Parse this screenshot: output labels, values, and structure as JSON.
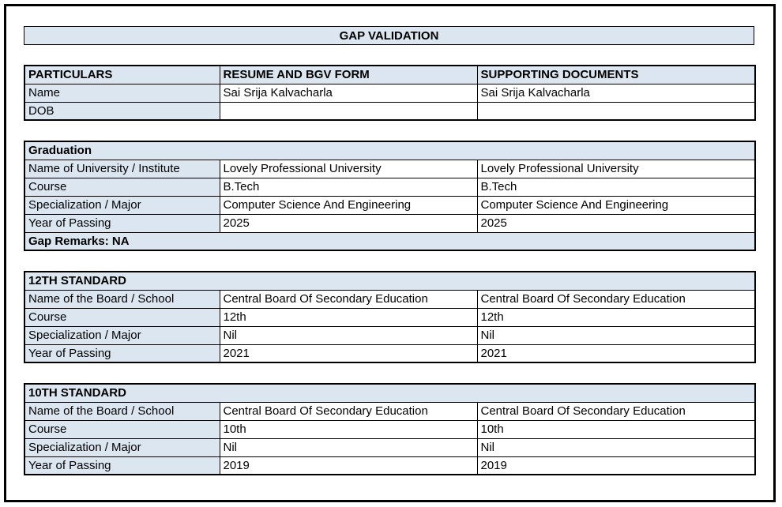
{
  "title": "GAP VALIDATION",
  "colors": {
    "header_fill": "#dce6f1",
    "border": "#000000",
    "page_background": "#ffffff",
    "text": "#000000"
  },
  "header_table": {
    "columns": [
      "PARTICULARS",
      "RESUME AND BGV FORM",
      "SUPPORTING DOCUMENTS"
    ],
    "rows": [
      {
        "label": "Name",
        "resume": "Sai Srija Kalvacharla",
        "supporting": "Sai Srija Kalvacharla"
      },
      {
        "label": "DOB",
        "resume": "",
        "supporting": ""
      }
    ]
  },
  "sections": [
    {
      "heading": "Graduation",
      "rows": [
        {
          "label": "Name of University / Institute",
          "resume": "Lovely Professional University",
          "supporting": "Lovely Professional University"
        },
        {
          "label": "Course",
          "resume": "B.Tech",
          "supporting": "B.Tech"
        },
        {
          "label": "Specialization / Major",
          "resume": "Computer Science And Engineering",
          "supporting": "Computer Science And Engineering"
        },
        {
          "label": "Year of Passing",
          "resume": "2025",
          "supporting": "2025"
        }
      ],
      "footer": "Gap Remarks: NA"
    },
    {
      "heading": "12TH STANDARD",
      "rows": [
        {
          "label": "Name of the Board / School",
          "resume": "Central Board Of Secondary Education",
          "supporting": "Central Board Of Secondary Education"
        },
        {
          "label": "Course",
          "resume": "12th",
          "supporting": "12th"
        },
        {
          "label": "Specialization / Major",
          "resume": "Nil",
          "supporting": "Nil"
        },
        {
          "label": "Year of Passing",
          "resume": "2021",
          "supporting": "2021"
        }
      ]
    },
    {
      "heading": "10TH STANDARD",
      "rows": [
        {
          "label": "Name of the Board / School",
          "resume": "Central Board Of Secondary Education",
          "supporting": "Central Board Of Secondary Education"
        },
        {
          "label": "Course",
          "resume": "10th",
          "supporting": "10th"
        },
        {
          "label": "Specialization / Major",
          "resume": "Nil",
          "supporting": "Nil"
        },
        {
          "label": "Year of Passing",
          "resume": "2019",
          "supporting": "2019"
        }
      ]
    }
  ]
}
